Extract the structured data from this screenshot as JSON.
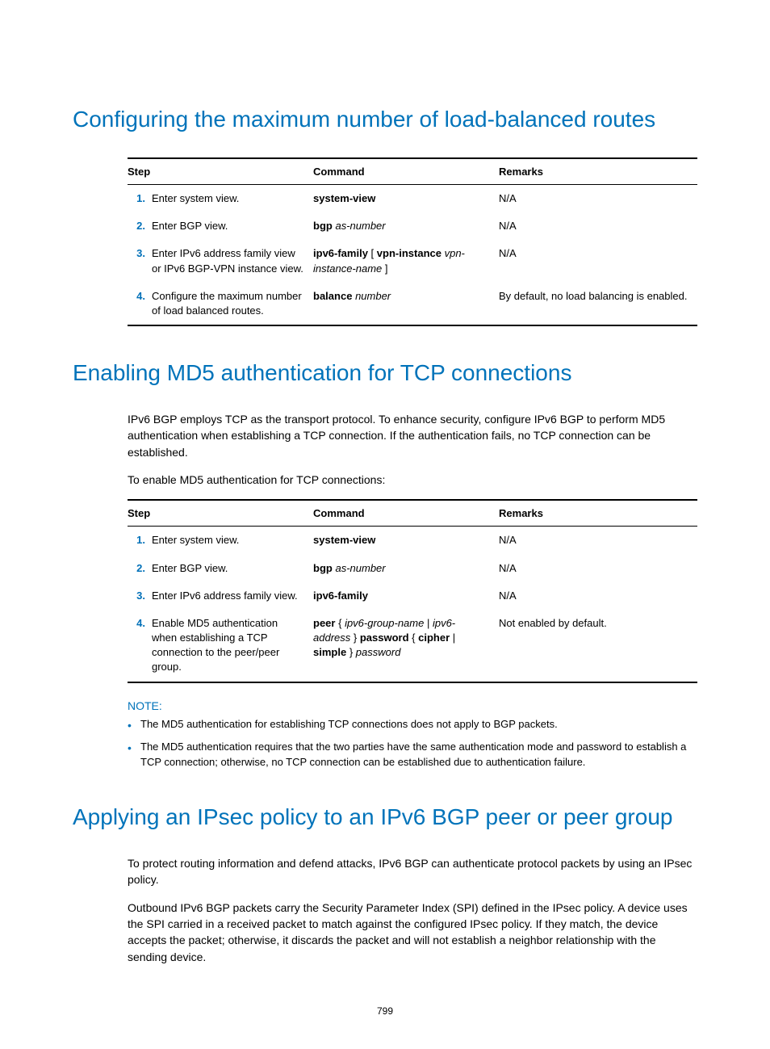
{
  "sections": {
    "s1": {
      "title": "Configuring the maximum number of load-balanced routes",
      "table": {
        "head": {
          "step": "Step",
          "cmd": "Command",
          "rem": "Remarks"
        },
        "rows": [
          {
            "num": "1.",
            "step": "Enter system view.",
            "cmd_b1": "system-view",
            "rem": "N/A"
          },
          {
            "num": "2.",
            "step": "Enter BGP view.",
            "cmd_b1": "bgp",
            "cmd_i1": "as-number",
            "rem": "N/A"
          },
          {
            "num": "3.",
            "step": "Enter IPv6 address family view or IPv6 BGP-VPN instance view.",
            "cmd_b1": "ipv6-family",
            "cmd_p1": " [ ",
            "cmd_b2": "vpn-instance",
            "cmd_i2": "vpn-instance-name",
            "cmd_p2": " ]",
            "rem": "N/A"
          },
          {
            "num": "4.",
            "step": "Configure the maximum number of load balanced routes.",
            "cmd_b1": "balance",
            "cmd_i1": "number",
            "rem": "By default, no load balancing is enabled."
          }
        ]
      }
    },
    "s2": {
      "title": "Enabling MD5 authentication for TCP connections",
      "para1": "IPv6 BGP employs TCP as the transport protocol. To enhance security, configure IPv6 BGP to perform MD5 authentication when establishing a TCP connection. If the authentication fails, no TCP connection can be established.",
      "para2": "To enable MD5 authentication for TCP connections:",
      "table": {
        "head": {
          "step": "Step",
          "cmd": "Command",
          "rem": "Remarks"
        },
        "rows": [
          {
            "num": "1.",
            "step": "Enter system view.",
            "cmd_b1": "system-view",
            "rem": "N/A"
          },
          {
            "num": "2.",
            "step": "Enter BGP view.",
            "cmd_b1": "bgp",
            "cmd_i1": "as-number",
            "rem": "N/A"
          },
          {
            "num": "3.",
            "step": "Enter IPv6 address family view.",
            "cmd_b1": "ipv6-family",
            "rem": "N/A"
          },
          {
            "num": "4.",
            "step": "Enable MD5 authentication when establishing a TCP connection to the peer/peer group.",
            "rem": "Not enabled by default."
          }
        ],
        "row4cmd": {
          "p1": "peer",
          "p2": " { ",
          "p3": "ipv6-group-name",
          "p4": " | ",
          "p5": "ipv6-address",
          "p6": " } ",
          "p7": "password",
          "p8": " { ",
          "p9": "cipher",
          "p10": " | ",
          "p11": "simple",
          "p12": " } ",
          "p13": "password"
        }
      },
      "note_label": "NOTE:",
      "notes": [
        "The MD5 authentication for establishing TCP connections does not apply to BGP packets.",
        "The MD5 authentication requires that the two parties have the same authentication mode and password to establish a TCP connection; otherwise, no TCP connection can be established due to authentication failure."
      ]
    },
    "s3": {
      "title": "Applying an IPsec policy to an IPv6 BGP peer or peer group",
      "para1": "To protect routing information and defend attacks, IPv6 BGP can authenticate protocol packets by using an IPsec policy.",
      "para2": "Outbound IPv6 BGP packets carry the Security Parameter Index (SPI) defined in the IPsec policy. A device uses the SPI carried in a received packet to match against the configured IPsec policy. If they match, the device accepts the packet; otherwise, it discards the packet and will not establish a neighbor relationship with the sending device."
    }
  },
  "page_number": "799"
}
